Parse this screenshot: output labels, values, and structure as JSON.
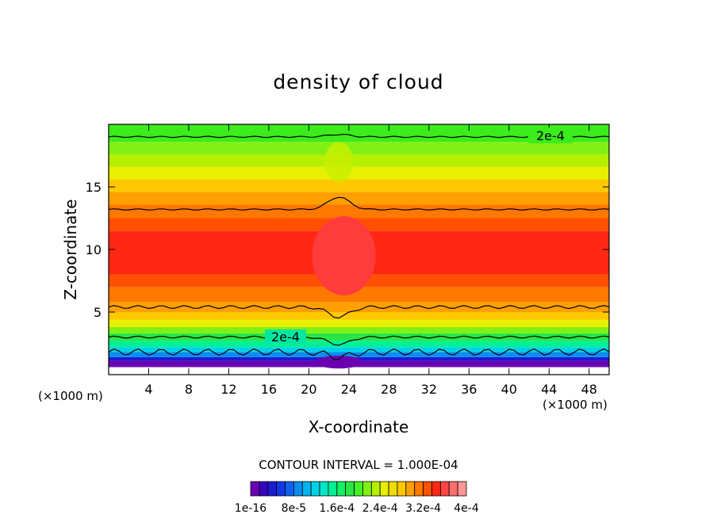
{
  "chart_data": {
    "type": "heatmap",
    "title": "density of cloud",
    "xlabel": "X-coordinate",
    "ylabel": "Z-coordinate",
    "x_unit": "(×1000 m)",
    "z_unit": "(×1000 m)",
    "xlim": [
      0,
      50
    ],
    "ylim": [
      0,
      20
    ],
    "x_ticks": [
      4,
      8,
      12,
      16,
      20,
      24,
      28,
      32,
      36,
      40,
      44,
      48
    ],
    "y_ticks": [
      5,
      10,
      15
    ],
    "contour_interval_text": "CONTOUR INTERVAL = 1.000E-04",
    "contour_label_upper": "2e-4",
    "contour_label_lower": "2e-4",
    "colorbar": {
      "levels": 25,
      "colors": [
        "#6a00b0",
        "#3a00c0",
        "#1c1cd0",
        "#1438e8",
        "#1060f0",
        "#0a8cf0",
        "#00b4f0",
        "#00d2e6",
        "#00e6c8",
        "#00f096",
        "#14f064",
        "#28e646",
        "#46f028",
        "#82f014",
        "#b4f000",
        "#e6f000",
        "#f0dc00",
        "#ffc800",
        "#ffa000",
        "#ff7800",
        "#ff5000",
        "#ff2814",
        "#ff4646",
        "#ff6e6e",
        "#ff9696"
      ],
      "tick_labels": [
        "1e-16",
        "8e-5",
        "1.6e-4",
        "2.4e-4",
        "3.2e-4",
        "4e-4"
      ]
    }
  }
}
